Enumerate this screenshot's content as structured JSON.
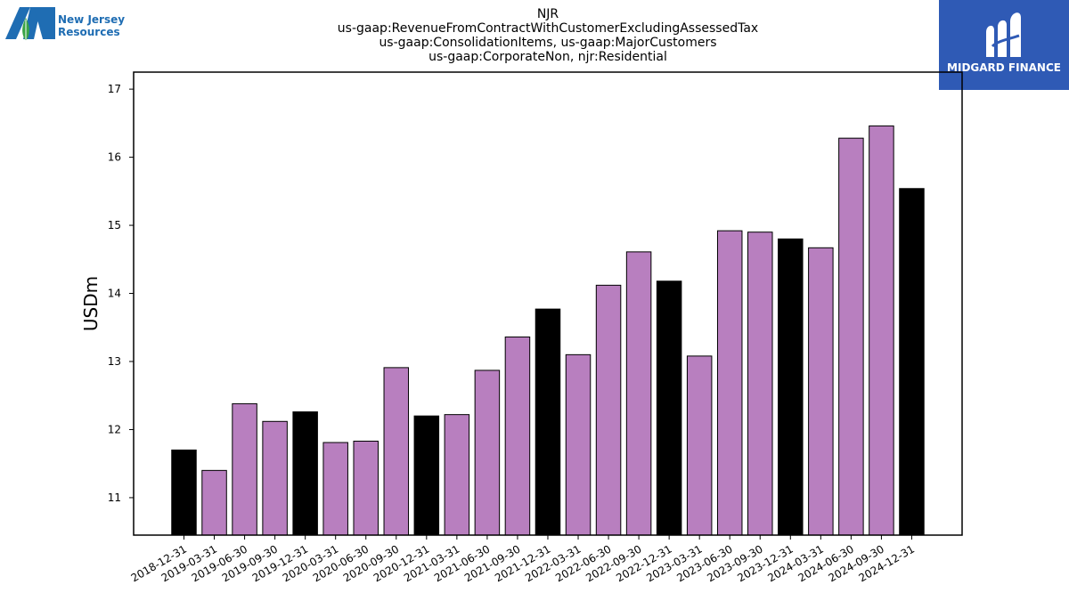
{
  "logos": {
    "left_text_line1": "New Jersey",
    "left_text_line2": "Resources",
    "right_text": "MIDGARD FINANCE"
  },
  "chart_data": {
    "type": "bar",
    "title": [
      "NJR",
      "us-gaap:RevenueFromContractWithCustomerExcludingAssessedTax",
      "us-gaap:ConsolidationItems, us-gaap:MajorCustomers",
      "us-gaap:CorporateNon, njr:Residential"
    ],
    "ylabel": "USDm",
    "xlabel": "",
    "ylim": [
      10.45,
      17.25
    ],
    "yticks": [
      11,
      12,
      13,
      14,
      15,
      16,
      17
    ],
    "categories": [
      "2018-12-31",
      "2019-03-31",
      "2019-06-30",
      "2019-09-30",
      "2019-12-31",
      "2020-03-31",
      "2020-06-30",
      "2020-09-30",
      "2020-12-31",
      "2021-03-31",
      "2021-06-30",
      "2021-09-30",
      "2021-12-31",
      "2022-03-31",
      "2022-06-30",
      "2022-09-30",
      "2022-12-31",
      "2023-03-31",
      "2023-06-30",
      "2023-09-30",
      "2023-12-31",
      "2024-03-31",
      "2024-06-30",
      "2024-09-30",
      "2024-12-31"
    ],
    "values": [
      11.7,
      11.4,
      12.38,
      12.12,
      12.26,
      11.81,
      11.83,
      12.91,
      12.2,
      12.22,
      12.87,
      13.36,
      13.77,
      13.1,
      14.12,
      14.61,
      14.18,
      13.08,
      14.92,
      14.9,
      14.8,
      14.67,
      16.28,
      16.46,
      15.54
    ],
    "colors": {
      "annual": "#000000",
      "quarterly": "#b87fbf",
      "edge": "#000000"
    },
    "annual_flags": [
      true,
      false,
      false,
      false,
      true,
      false,
      false,
      false,
      true,
      false,
      false,
      false,
      true,
      false,
      false,
      false,
      true,
      false,
      false,
      false,
      true,
      false,
      false,
      false,
      true
    ]
  }
}
